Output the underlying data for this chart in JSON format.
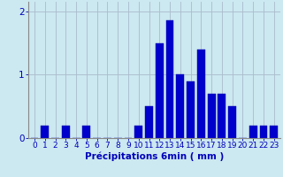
{
  "categories": [
    0,
    1,
    2,
    3,
    4,
    5,
    6,
    7,
    8,
    9,
    10,
    11,
    12,
    13,
    14,
    15,
    16,
    17,
    18,
    19,
    20,
    21,
    22,
    23
  ],
  "values": [
    0.0,
    0.2,
    0.0,
    0.2,
    0.0,
    0.2,
    0.0,
    0.0,
    0.0,
    0.0,
    0.2,
    0.5,
    1.5,
    1.85,
    1.0,
    0.9,
    1.4,
    0.7,
    0.7,
    0.5,
    0.0,
    0.2,
    0.2,
    0.2
  ],
  "bar_color": "#0000cc",
  "background_color": "#cce8f0",
  "grid_color": "#aabbcc",
  "axis_color": "#888888",
  "xlabel": "Précipitations 6min ( mm )",
  "ylim": [
    0,
    2.15
  ],
  "yticks": [
    0,
    1,
    2
  ],
  "xlim": [
    -0.6,
    23.6
  ],
  "xlabel_fontsize": 7.5,
  "tick_fontsize": 6.5,
  "tick_color": "#0000bb",
  "bar_width": 0.75
}
